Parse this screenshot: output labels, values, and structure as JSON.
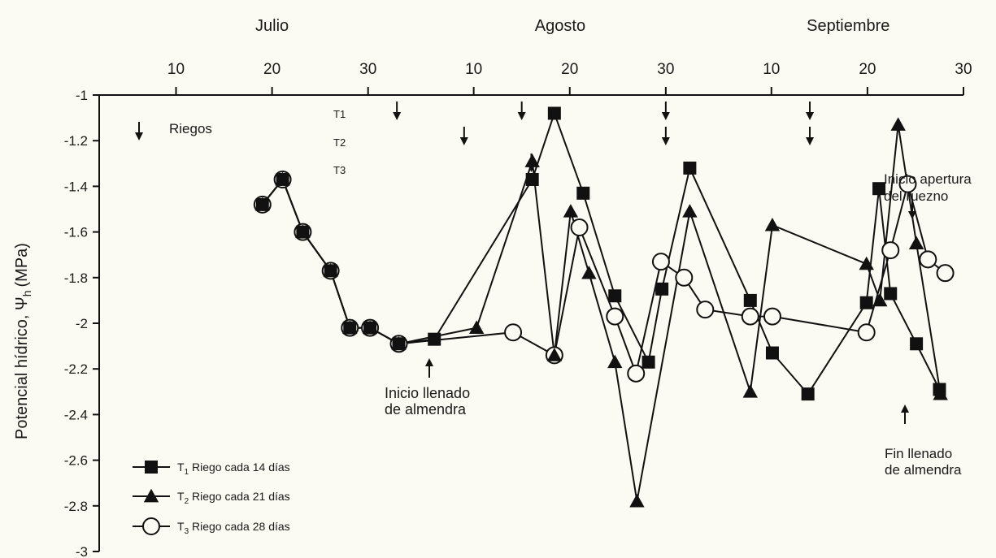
{
  "chart_data": {
    "type": "line",
    "ylabel_main": "Potencial hídrico, Ψ",
    "ylabel_sub": "h",
    "ylabel_unit": "(MPa)",
    "ylim": [
      -3,
      -1
    ],
    "y_ticks": [
      -1,
      -1.2,
      -1.4,
      -1.6,
      -1.8,
      -2,
      -2.2,
      -2.4,
      -2.6,
      -2.8,
      -3
    ],
    "months": [
      {
        "name": "Julio",
        "day": 20
      },
      {
        "name": "Agosto",
        "day": 50
      },
      {
        "name": "Septiembre",
        "day": 80
      }
    ],
    "x_ticks": [
      {
        "day": 10,
        "label": "10"
      },
      {
        "day": 20,
        "label": "20"
      },
      {
        "day": 30,
        "label": "30"
      },
      {
        "day": 41,
        "label": "10"
      },
      {
        "day": 51,
        "label": "20"
      },
      {
        "day": 61,
        "label": "30"
      },
      {
        "day": 72,
        "label": "10"
      },
      {
        "day": 82,
        "label": "20"
      },
      {
        "day": 92,
        "label": "30"
      }
    ],
    "xlim": [
      2,
      92
    ],
    "series": [
      {
        "name": "T1 Riego cada 14 días",
        "legend_main": "T",
        "legend_sub": "1",
        "legend_rest": " Riego cada 14 días",
        "marker": "square",
        "x": [
          19,
          21.1,
          23.2,
          26.1,
          28.1,
          30.2,
          33.2,
          36.9,
          47.1,
          49.4,
          52.4,
          55.7,
          59.2,
          60.6,
          63.5,
          69.8,
          72.1,
          75.8,
          81.9,
          83.2,
          84.4,
          87.1,
          89.5
        ],
        "y": [
          -1.48,
          -1.37,
          -1.6,
          -1.77,
          -2.02,
          -2.02,
          -2.09,
          -2.07,
          -1.37,
          -1.08,
          -1.43,
          -1.88,
          -2.17,
          -1.85,
          -1.32,
          -1.9,
          -2.13,
          -2.31,
          -1.91,
          -1.41,
          -1.87,
          -2.09,
          -2.29
        ]
      },
      {
        "name": "T2 Riego cada 21 días",
        "legend_main": "T",
        "legend_sub": "2",
        "legend_rest": " Riego cada 21 días",
        "marker": "triangle",
        "x": [
          19,
          21.1,
          23.2,
          26.1,
          28.1,
          30.2,
          33.2,
          41.3,
          47.1,
          49.4,
          51.1,
          53.0,
          55.7,
          58.0,
          63.5,
          69.8,
          72.1,
          81.9,
          83.3,
          85.2,
          87.1,
          89.6
        ],
        "y": [
          -1.48,
          -1.37,
          -1.6,
          -1.77,
          -2.02,
          -2.02,
          -2.09,
          -2.02,
          -1.29,
          -2.14,
          -1.51,
          -1.78,
          -2.17,
          -2.78,
          -1.51,
          -2.3,
          -1.57,
          -1.74,
          -1.9,
          -1.13,
          -1.65,
          -2.31
        ]
      },
      {
        "name": "T3 Riego cada 28 días",
        "legend_main": "T",
        "legend_sub": "3",
        "legend_rest": " Riego cada 28 días",
        "marker": "circle",
        "x": [
          19,
          21.1,
          23.2,
          26.1,
          28.1,
          30.2,
          33.2,
          45.1,
          49.4,
          52.0,
          55.7,
          57.9,
          60.5,
          62.9,
          65.1,
          69.8,
          72.1,
          81.9,
          84.4,
          86.2,
          88.3,
          90.1
        ],
        "y": [
          -1.48,
          -1.37,
          -1.6,
          -1.77,
          -2.02,
          -2.02,
          -2.09,
          -2.04,
          -2.14,
          -1.58,
          -1.97,
          -2.22,
          -1.73,
          -1.8,
          -1.94,
          -1.97,
          -1.97,
          -2.04,
          -1.68,
          -1.39,
          -1.72,
          -1.78
        ]
      }
    ],
    "irrigation_label": "Riegos",
    "irrigation_rows": [
      "T1",
      "T2",
      "T3"
    ],
    "irrigation_arrows": [
      {
        "row": "T1",
        "days": [
          33,
          46,
          61,
          76
        ]
      },
      {
        "row": "T2",
        "days": [
          40,
          61,
          76
        ]
      },
      {
        "row": "T3",
        "days": [
          47
        ]
      }
    ],
    "annotations": {
      "inicio_llenado_line1": "Inicio llenado",
      "inicio_llenado_line2": "de almendra",
      "inicio_apertura_line1": "Inicio apertura",
      "inicio_apertura_line2": "del ruezno",
      "fin_llenado_line1": "Fin llenado",
      "fin_llenado_line2": "de almendra"
    }
  }
}
